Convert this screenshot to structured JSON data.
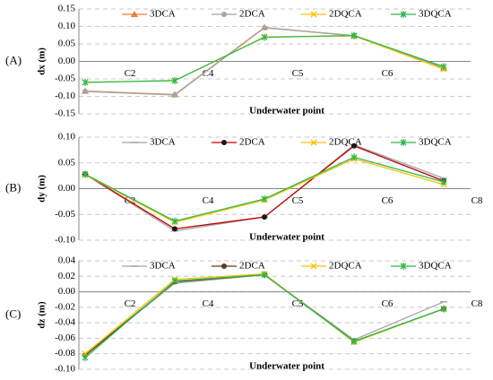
{
  "chart_data": [
    {
      "type": "line",
      "panel_label": "(A)",
      "y_label": "dx (m)",
      "x_label": "Underwater point",
      "categories": [
        "C2",
        "C4",
        "C5",
        "C6",
        null
      ],
      "ylim": [
        -0.15,
        0.15
      ],
      "yticks": [
        {
          "value": 0.15,
          "label": "0.15"
        },
        {
          "value": 0.1,
          "label": "0.10"
        },
        0.05,
        {
          "value": 0,
          "label": "0.00"
        },
        -0.05,
        {
          "value": -0.1,
          "label": "-0.10"
        },
        -0.15
      ],
      "grid": true,
      "legend": "top",
      "series": [
        {
          "name": "3DCA",
          "color": "#ed7d31",
          "marker": "triangle",
          "values": [
            -0.085,
            -0.095,
            0.097,
            0.073,
            -0.02
          ]
        },
        {
          "name": "2DCA",
          "color": "#a5a5a5",
          "marker": "circle",
          "values": [
            -0.086,
            -0.096,
            0.096,
            0.074,
            -0.018
          ]
        },
        {
          "name": "2DQCA",
          "color": "#ffc000",
          "marker": "x",
          "values": [
            -0.06,
            -0.055,
            0.07,
            0.073,
            -0.022
          ]
        },
        {
          "name": "3DQCA",
          "color": "#2db84b",
          "marker": "star",
          "values": [
            -0.06,
            -0.055,
            0.069,
            0.074,
            -0.015
          ]
        }
      ]
    },
    {
      "type": "line",
      "panel_label": "(B)",
      "y_label": "dy (m)",
      "x_label": "Underwater point",
      "categories": [
        "C2",
        "C4",
        "C5",
        "C6",
        "C8"
      ],
      "ylim": [
        -0.1,
        0.1
      ],
      "yticks": [
        {
          "value": 0.1,
          "label": "0.10"
        },
        0.05,
        {
          "value": 0,
          "label": "0.00"
        },
        -0.05,
        {
          "value": -0.1,
          "label": "-0.10"
        }
      ],
      "grid": true,
      "legend": "top",
      "series": [
        {
          "name": "3DCA",
          "color": "#a5a5a5",
          "marker": "dash",
          "values": [
            0.028,
            -0.082,
            -0.055,
            0.085,
            0.02
          ]
        },
        {
          "name": "2DCA",
          "color": "#c00000",
          "marker": "circle",
          "values": [
            0.028,
            -0.078,
            -0.055,
            0.083,
            0.015
          ]
        },
        {
          "name": "2DQCA",
          "color": "#ffc000",
          "marker": "x",
          "values": [
            0.027,
            -0.065,
            -0.022,
            0.058,
            0.008
          ]
        },
        {
          "name": "3DQCA",
          "color": "#2db84b",
          "marker": "star",
          "values": [
            0.028,
            -0.063,
            -0.02,
            0.061,
            0.013
          ]
        }
      ]
    },
    {
      "type": "line",
      "panel_label": "(C)",
      "y_label": "dz (m)",
      "x_label": "Underwater point",
      "categories": [
        "C2",
        "C4",
        "C5",
        "C6",
        "C8"
      ],
      "ylim": [
        -0.1,
        0.04
      ],
      "yticks": [
        0.04,
        0.02,
        {
          "value": 0,
          "label": "0.00"
        },
        -0.02,
        -0.04,
        -0.06,
        -0.08,
        {
          "value": -0.1,
          "label": "-0.10"
        }
      ],
      "grid": true,
      "legend": "top",
      "series": [
        {
          "name": "3DCA",
          "color": "#a5a5a5",
          "marker": "dash",
          "values": [
            -0.082,
            0.011,
            0.022,
            -0.062,
            -0.013
          ]
        },
        {
          "name": "2DCA",
          "color": "#5b3a1e",
          "marker": "circle",
          "values": [
            -0.082,
            0.013,
            0.022,
            -0.064,
            -0.022
          ]
        },
        {
          "name": "2DQCA",
          "color": "#ffc000",
          "marker": "x",
          "values": [
            -0.08,
            0.016,
            0.023,
            -0.065,
            -0.022
          ]
        },
        {
          "name": "3DQCA",
          "color": "#2db84b",
          "marker": "star",
          "values": [
            -0.085,
            0.014,
            0.022,
            -0.064,
            -0.022
          ]
        }
      ]
    }
  ]
}
